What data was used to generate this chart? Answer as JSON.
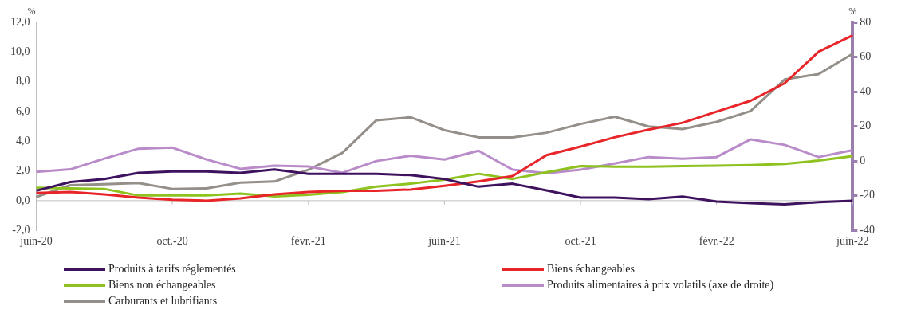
{
  "chart_data": {
    "type": "line",
    "categories": [
      "juin-20",
      null,
      null,
      null,
      "oct.-20",
      null,
      null,
      null,
      "févr.-21",
      null,
      null,
      null,
      "juin-21",
      null,
      null,
      null,
      "oct.-21",
      null,
      null,
      null,
      "févr.-22",
      null,
      null,
      null,
      "juin-22"
    ],
    "ylabel": "%",
    "y2label": "%",
    "ylim": [
      -2,
      12
    ],
    "yticks": [
      {
        "value": -2,
        "label": "-2,0"
      },
      {
        "value": 0,
        "label": "0,0"
      },
      {
        "value": 2,
        "label": "2,0"
      },
      {
        "value": 4,
        "label": "4,0"
      },
      {
        "value": 6,
        "label": "6,0"
      },
      {
        "value": 8,
        "label": "8,0"
      },
      {
        "value": 10,
        "label": "10,0"
      },
      {
        "value": 12,
        "label": "12,0"
      }
    ],
    "y2lim": [
      -40,
      80
    ],
    "y2ticks": [
      -40,
      -20,
      0,
      20,
      40,
      60,
      80
    ],
    "grid": false,
    "legend": "bottom",
    "marker": "none",
    "line_style": "solid",
    "ref_lines": [
      {
        "axis": "y",
        "value": 0,
        "color": "#bfbfbf"
      }
    ],
    "series": [
      {
        "name": "Produits à tarifs réglementés",
        "color": "#3f1260",
        "values": [
          0.67,
          1.25,
          1.45,
          1.87,
          1.97,
          1.97,
          1.87,
          2.1,
          1.8,
          1.8,
          1.8,
          1.72,
          1.45,
          0.94,
          1.14,
          0.69,
          0.21,
          0.21,
          0.1,
          0.27,
          -0.06,
          -0.17,
          -0.25,
          -0.1,
          0
        ]
      },
      {
        "name": "Biens échangeables",
        "color": "#e8262a",
        "values": [
          0.52,
          0.58,
          0.42,
          0.21,
          0.06,
          0,
          0.15,
          0.42,
          0.58,
          0.67,
          0.67,
          0.75,
          1.0,
          1.29,
          1.66,
          3.06,
          3.64,
          4.26,
          4.78,
          5.24,
          5.99,
          6.72,
          7.9,
          10.02,
          11.12
        ]
      },
      {
        "name": "Biens non échangeables",
        "color": "#8dc21f",
        "values": [
          0.87,
          0.83,
          0.79,
          0.35,
          0.35,
          0.35,
          0.48,
          0.29,
          0.4,
          0.58,
          0.94,
          1.14,
          1.41,
          1.81,
          1.46,
          1.91,
          2.33,
          2.29,
          2.29,
          2.33,
          2.35,
          2.39,
          2.47,
          2.7,
          2.99
        ]
      },
      {
        "name": "Produits alimentaires à prix volatils (axe de droite)",
        "color": "#b98cc9",
        "axis": "y2",
        "values": [
          -6.3,
          -4.8,
          1.4,
          7.1,
          7.7,
          0.9,
          -4.5,
          -2.7,
          -3.2,
          -6.8,
          0,
          3.0,
          0.9,
          5.9,
          -5.0,
          -7.1,
          -5.0,
          -1.4,
          2.3,
          1.3,
          2.3,
          12.5,
          9.3,
          2.3,
          6.3
        ]
      },
      {
        "name": "Carburants et lubrifiants",
        "color": "#948f88",
        "values": [
          0.25,
          1.04,
          1.1,
          1.19,
          0.79,
          0.83,
          1.21,
          1.29,
          2.08,
          3.22,
          5.41,
          5.61,
          4.74,
          4.26,
          4.26,
          4.57,
          5.16,
          5.65,
          4.99,
          4.82,
          5.3,
          6.03,
          8.15,
          8.52,
          9.88
        ]
      }
    ]
  }
}
